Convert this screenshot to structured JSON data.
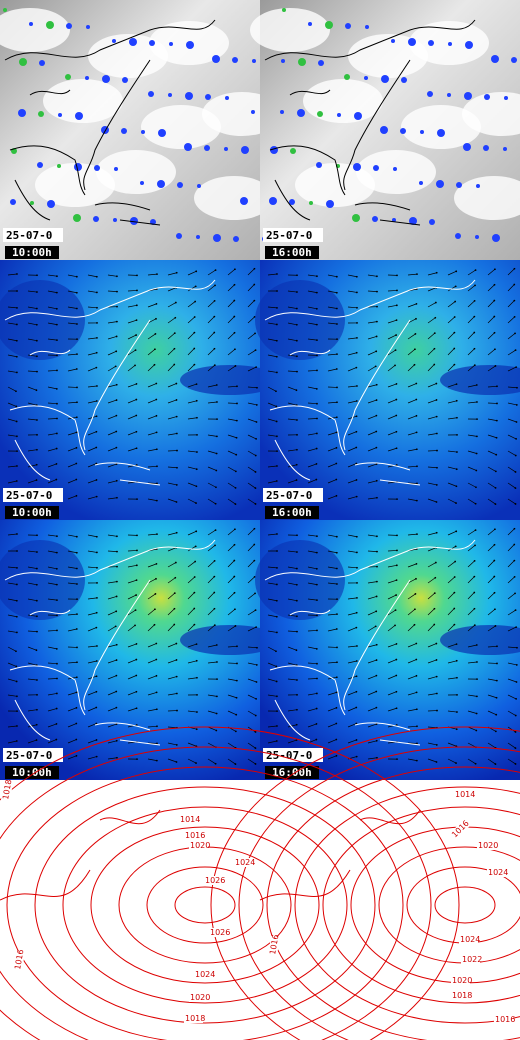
{
  "rows": [
    {
      "panels": [
        {
          "date": "25-07-0",
          "time": "10:00h"
        },
        {
          "date": "25-07-0",
          "time": "16:00h"
        }
      ]
    },
    {
      "panels": [
        {
          "date": "25-07-0",
          "time": "10:00h"
        },
        {
          "date": "25-07-0",
          "time": "16:00h"
        }
      ]
    },
    {
      "panels": [
        {
          "date": "25-07-0",
          "time": "10:00h"
        },
        {
          "date": "25-07-0",
          "time": "16:00h"
        }
      ]
    }
  ],
  "isobars": [
    {
      "labels": [
        "1018",
        "1014",
        "1016",
        "1020",
        "1024",
        "1026",
        "1026",
        "1024",
        "1016",
        "1020",
        "1018"
      ]
    },
    {
      "labels": [
        "1014",
        "1016",
        "1020",
        "1024",
        "1024",
        "1016",
        "1022",
        "1020",
        "1018",
        "1016"
      ]
    }
  ]
}
